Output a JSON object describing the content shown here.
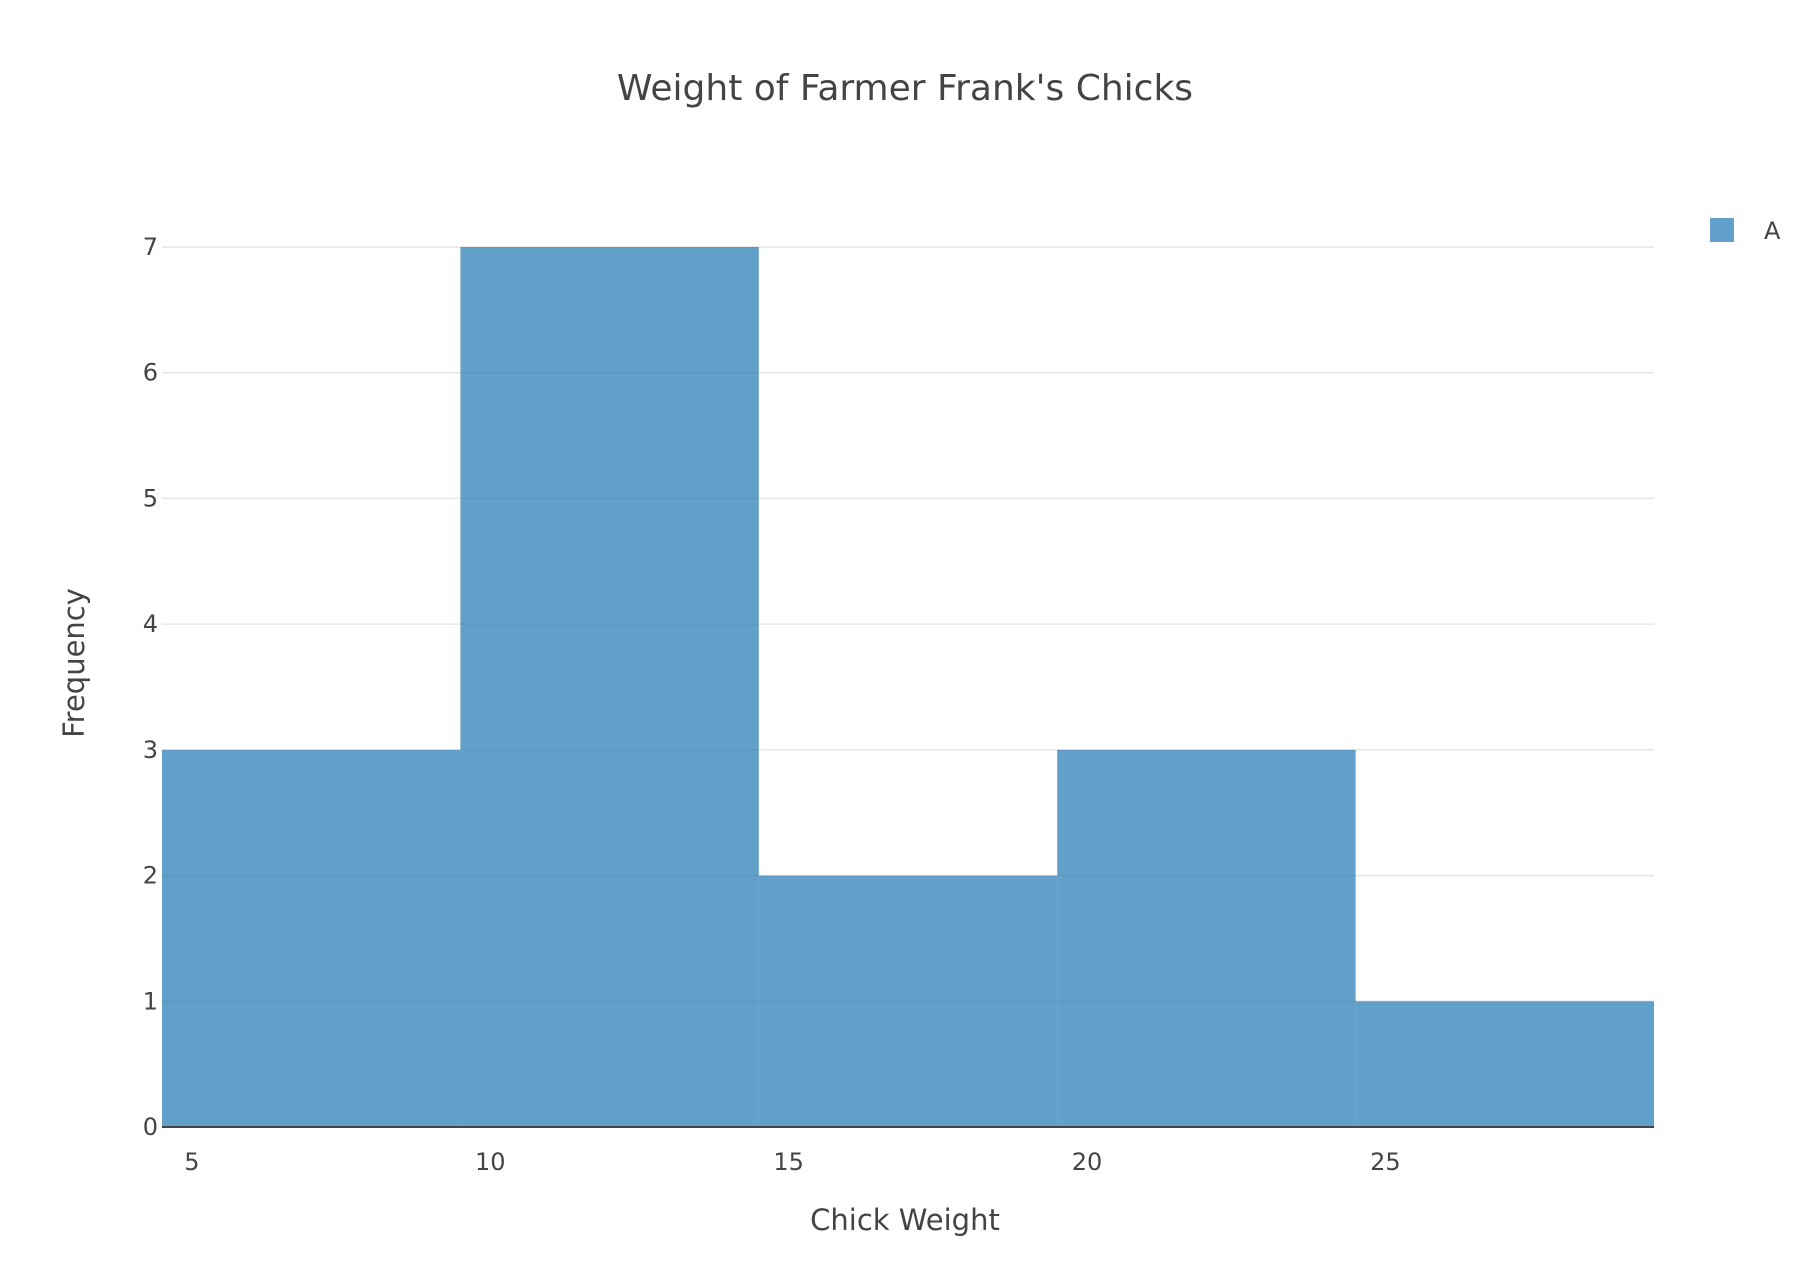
{
  "chart_data": {
    "type": "bar",
    "subtype": "histogram",
    "title": "Weight of Farmer Frank's Chicks",
    "xlabel": "Chick Weight",
    "ylabel": "Frequency",
    "bins": [
      {
        "start": 4.5,
        "end": 9.5,
        "count": 3
      },
      {
        "start": 9.5,
        "end": 14.5,
        "count": 7
      },
      {
        "start": 14.5,
        "end": 19.5,
        "count": 2
      },
      {
        "start": 19.5,
        "end": 24.5,
        "count": 3
      },
      {
        "start": 24.5,
        "end": 29.5,
        "count": 1
      }
    ],
    "series": [
      {
        "name": "A",
        "values": [
          3,
          7,
          2,
          3,
          1
        ],
        "color": "#1f77b4",
        "opacity": 0.7
      }
    ],
    "xlim": [
      4.5,
      29.5
    ],
    "ylim": [
      0,
      7
    ],
    "x_ticks": [
      {
        "value": 5,
        "label": "5"
      },
      {
        "value": 10,
        "label": "10"
      },
      {
        "value": 15,
        "label": "15"
      },
      {
        "value": 20,
        "label": "20"
      },
      {
        "value": 25,
        "label": "25"
      }
    ],
    "y_ticks": [
      {
        "value": 0,
        "label": "0"
      },
      {
        "value": 1,
        "label": "1"
      },
      {
        "value": 2,
        "label": "2"
      },
      {
        "value": 3,
        "label": "3"
      },
      {
        "value": 4,
        "label": "4"
      },
      {
        "value": 5,
        "label": "5"
      },
      {
        "value": 6,
        "label": "6"
      },
      {
        "value": 7,
        "label": "7"
      }
    ],
    "grid": true,
    "legend_position": "top-right"
  }
}
